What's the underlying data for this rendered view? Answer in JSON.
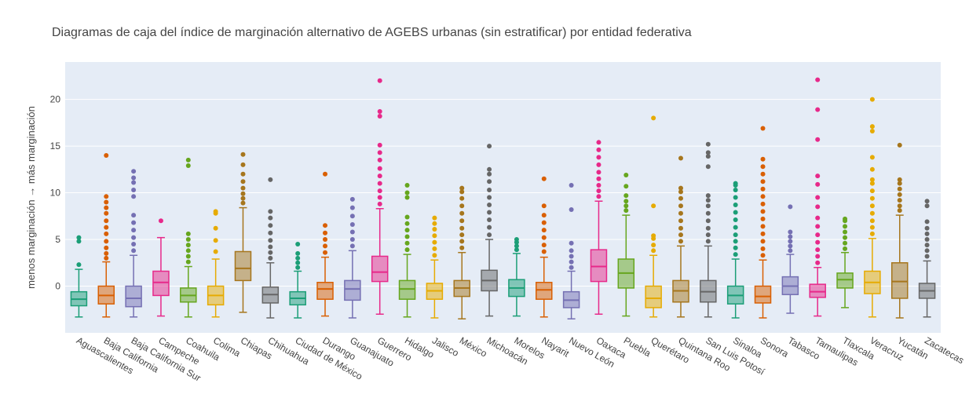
{
  "chart_data": {
    "type": "box",
    "title": "Diagramas de caja del índice de marginación alternativo de AGEBS urbanas (sin estratificar) por entidad federativa",
    "ylabel": "menos marginación → más marginación",
    "xlabel": "",
    "ylim": [
      -5,
      24
    ],
    "yticks": [
      0,
      5,
      10,
      15,
      20
    ],
    "grid": true,
    "legend": "none",
    "palette": [
      "#1b9e77",
      "#d95f02",
      "#7570b3",
      "#e7298a",
      "#66a61e",
      "#e6ab02",
      "#a6761d",
      "#666666"
    ],
    "background": "#e5ecf6",
    "categories": [
      "Aguascalientes",
      "Baja California",
      "Baja California Sur",
      "Campeche",
      "Coahuila",
      "Colima",
      "Chiapas",
      "Chihuahua",
      "Ciudad de México",
      "Durango",
      "Guanajuato",
      "Guerrero",
      "Hidalgo",
      "Jalisco",
      "México",
      "Michoacán",
      "Morelos",
      "Nayarit",
      "Nuevo León",
      "Oaxaca",
      "Puebla",
      "Querétaro",
      "Quintana Roo",
      "San Luis Potosí",
      "Sinaloa",
      "Sonora",
      "Tabasco",
      "Tamaulipas",
      "Tlaxcala",
      "Veracruz",
      "Yucatán",
      "Zacatecas"
    ],
    "boxes": [
      {
        "min": -3.3,
        "q1": -2.1,
        "median": -1.4,
        "q3": -0.6,
        "max": 1.8,
        "outliers": [
          2.3,
          4.8,
          5.2
        ]
      },
      {
        "min": -3.3,
        "q1": -1.9,
        "median": -1.0,
        "q3": 0.0,
        "max": 2.6,
        "outliers": [
          3.0,
          3.5,
          4.1,
          4.8,
          5.6,
          6.3,
          7.0,
          7.8,
          8.4,
          9.0,
          9.6,
          14.0
        ]
      },
      {
        "min": -3.3,
        "q1": -2.2,
        "median": -1.3,
        "q3": 0.0,
        "max": 3.3,
        "outliers": [
          3.8,
          4.5,
          5.2,
          6.0,
          6.8,
          7.6,
          9.6,
          10.3,
          11.1,
          11.6,
          12.3
        ]
      },
      {
        "min": -3.2,
        "q1": -1.0,
        "median": 0.4,
        "q3": 1.6,
        "max": 5.2,
        "outliers": [
          7.0
        ]
      },
      {
        "min": -3.3,
        "q1": -1.7,
        "median": -1.0,
        "q3": -0.2,
        "max": 2.1,
        "outliers": [
          2.6,
          3.2,
          3.8,
          4.4,
          5.0,
          5.6,
          12.9,
          13.5
        ]
      },
      {
        "min": -3.3,
        "q1": -2.0,
        "median": -1.0,
        "q3": 0.0,
        "max": 2.9,
        "outliers": [
          3.7,
          4.9,
          6.2,
          7.8,
          8.0
        ]
      },
      {
        "min": -2.8,
        "q1": 0.6,
        "median": 1.9,
        "q3": 3.7,
        "max": 8.4,
        "outliers": [
          8.9,
          9.4,
          9.9,
          10.5,
          11.2,
          12.0,
          13.0,
          14.1
        ]
      },
      {
        "min": -3.4,
        "q1": -1.8,
        "median": -0.9,
        "q3": -0.1,
        "max": 2.5,
        "outliers": [
          3.0,
          3.6,
          4.2,
          4.9,
          5.7,
          6.5,
          7.3,
          8.0,
          11.4
        ]
      },
      {
        "min": -3.4,
        "q1": -2.0,
        "median": -1.3,
        "q3": -0.6,
        "max": 1.6,
        "outliers": [
          2.0,
          2.5,
          3.0,
          3.5,
          4.5
        ]
      },
      {
        "min": -3.2,
        "q1": -1.4,
        "median": -0.3,
        "q3": 0.4,
        "max": 3.1,
        "outliers": [
          3.6,
          4.3,
          5.0,
          5.7,
          6.5,
          12.0
        ]
      },
      {
        "min": -3.4,
        "q1": -1.5,
        "median": -0.3,
        "q3": 0.6,
        "max": 3.8,
        "outliers": [
          4.3,
          5.0,
          5.8,
          6.6,
          7.5,
          8.4,
          9.3
        ]
      },
      {
        "min": -3.0,
        "q1": 0.5,
        "median": 1.5,
        "q3": 3.2,
        "max": 8.3,
        "outliers": [
          8.8,
          9.5,
          10.2,
          11.0,
          11.8,
          12.6,
          13.5,
          14.3,
          15.1,
          18.2,
          18.7,
          22.0
        ]
      },
      {
        "min": -3.3,
        "q1": -1.4,
        "median": -0.3,
        "q3": 0.6,
        "max": 3.4,
        "outliers": [
          3.9,
          4.6,
          5.3,
          6.0,
          6.7,
          7.4,
          9.5,
          10.0,
          10.8
        ]
      },
      {
        "min": -3.4,
        "q1": -1.4,
        "median": -0.5,
        "q3": 0.3,
        "max": 2.8,
        "outliers": [
          3.3,
          4.0,
          4.7,
          5.4,
          6.1,
          6.7,
          7.3
        ]
      },
      {
        "min": -3.5,
        "q1": -1.1,
        "median": -0.2,
        "q3": 0.6,
        "max": 3.6,
        "outliers": [
          4.1,
          4.8,
          5.5,
          6.2,
          7.0,
          7.8,
          8.6,
          9.4,
          10.1,
          10.5
        ]
      },
      {
        "min": -3.2,
        "q1": -0.5,
        "median": 0.6,
        "q3": 1.7,
        "max": 5.0,
        "outliers": [
          5.5,
          6.3,
          7.1,
          7.9,
          8.7,
          9.5,
          10.3,
          11.2,
          12.0,
          12.5,
          15.0
        ]
      },
      {
        "min": -3.2,
        "q1": -1.1,
        "median": -0.2,
        "q3": 0.7,
        "max": 3.5,
        "outliers": [
          3.9,
          4.3,
          4.7,
          5.0
        ]
      },
      {
        "min": -3.3,
        "q1": -1.4,
        "median": -0.4,
        "q3": 0.4,
        "max": 3.1,
        "outliers": [
          3.7,
          4.4,
          5.2,
          6.0,
          6.8,
          7.6,
          8.6,
          11.5
        ]
      },
      {
        "min": -3.5,
        "q1": -2.3,
        "median": -1.5,
        "q3": -0.6,
        "max": 1.6,
        "outliers": [
          2.0,
          2.6,
          3.2,
          3.8,
          4.6,
          8.2,
          10.8
        ]
      },
      {
        "min": -3.0,
        "q1": 0.5,
        "median": 2.1,
        "q3": 3.9,
        "max": 9.1,
        "outliers": [
          9.6,
          10.2,
          10.8,
          11.5,
          12.2,
          13.0,
          13.8,
          14.6,
          15.4
        ]
      },
      {
        "min": -3.2,
        "q1": -0.2,
        "median": 1.4,
        "q3": 2.9,
        "max": 7.6,
        "outliers": [
          8.1,
          8.6,
          9.1,
          9.7,
          10.7,
          11.9
        ]
      },
      {
        "min": -3.3,
        "q1": -2.3,
        "median": -1.3,
        "q3": 0.0,
        "max": 3.3,
        "outliers": [
          3.8,
          4.4,
          5.1,
          5.4,
          8.6,
          18.0
        ]
      },
      {
        "min": -3.3,
        "q1": -1.7,
        "median": -0.5,
        "q3": 0.6,
        "max": 4.3,
        "outliers": [
          4.8,
          5.5,
          6.2,
          7.0,
          7.8,
          8.6,
          9.4,
          10.1,
          10.5,
          13.7
        ]
      },
      {
        "min": -3.3,
        "q1": -1.7,
        "median": -0.6,
        "q3": 0.6,
        "max": 4.3,
        "outliers": [
          4.8,
          5.5,
          6.2,
          7.0,
          7.8,
          8.6,
          9.2,
          9.7,
          12.8,
          13.9,
          14.3,
          15.2
        ]
      },
      {
        "min": -3.4,
        "q1": -1.9,
        "median": -1.0,
        "q3": 0.0,
        "max": 2.9,
        "outliers": [
          3.4,
          4.1,
          4.8,
          5.5,
          6.3,
          7.1,
          7.9,
          8.7,
          9.5,
          10.3,
          10.8,
          11.0
        ]
      },
      {
        "min": -3.4,
        "q1": -1.8,
        "median": -1.1,
        "q3": 0.0,
        "max": 2.8,
        "outliers": [
          3.3,
          4.0,
          4.8,
          5.6,
          6.4,
          7.2,
          8.0,
          8.8,
          9.6,
          10.4,
          11.2,
          12.0,
          12.8,
          13.6,
          16.9
        ]
      },
      {
        "min": -2.9,
        "q1": -0.9,
        "median": 0.0,
        "q3": 1.0,
        "max": 3.4,
        "outliers": [
          3.8,
          4.3,
          4.8,
          5.3,
          5.8,
          8.5
        ]
      },
      {
        "min": -3.2,
        "q1": -1.2,
        "median": -0.6,
        "q3": 0.2,
        "max": 2.0,
        "outliers": [
          2.5,
          3.2,
          3.9,
          4.7,
          5.5,
          6.4,
          7.3,
          8.5,
          9.5,
          10.9,
          11.8,
          15.7,
          18.9,
          22.1
        ]
      },
      {
        "min": -2.3,
        "q1": -0.2,
        "median": 0.7,
        "q3": 1.4,
        "max": 3.6,
        "outliers": [
          4.0,
          4.6,
          5.2,
          5.8,
          6.4,
          7.0,
          7.2
        ]
      },
      {
        "min": -3.3,
        "q1": -0.8,
        "median": 0.4,
        "q3": 1.6,
        "max": 5.1,
        "outliers": [
          5.6,
          6.3,
          7.0,
          7.8,
          8.6,
          9.4,
          10.2,
          11.0,
          11.4,
          12.5,
          13.8,
          16.6,
          17.1,
          20.0
        ]
      },
      {
        "min": -3.4,
        "q1": -1.3,
        "median": 0.5,
        "q3": 2.5,
        "max": 7.6,
        "outliers": [
          8.1,
          8.6,
          9.2,
          9.8,
          10.4,
          11.0,
          11.4,
          15.1
        ]
      },
      {
        "min": -3.3,
        "q1": -1.3,
        "median": -0.5,
        "q3": 0.3,
        "max": 2.7,
        "outliers": [
          3.2,
          3.8,
          4.4,
          5.0,
          5.6,
          6.2,
          6.9,
          8.6,
          9.1
        ]
      }
    ]
  }
}
